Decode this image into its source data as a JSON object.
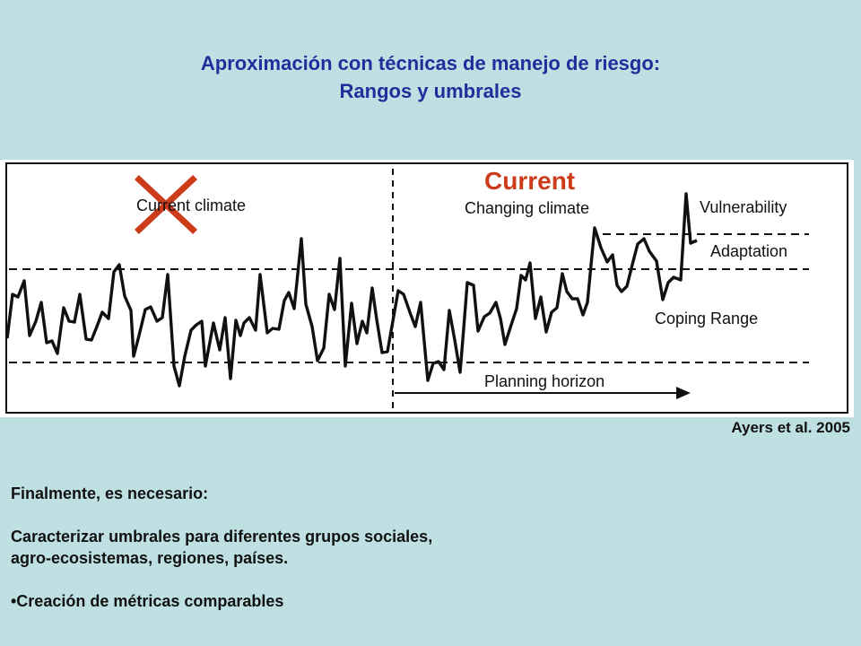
{
  "slide": {
    "title_line1": "Aproximación con técnicas de manejo de riesgo:",
    "title_line2": "Rangos y umbrales",
    "citation": "Ayers et al. 2005",
    "intro": "Finalmente, es necesario:",
    "point1_line1": "Caracterizar umbrales para diferentes grupos sociales,",
    "point1_line2": "agro-ecosistemas, regiones, países.",
    "point2": "•Creación de métricas comparables"
  },
  "figure": {
    "labels": {
      "current_climate": "Current climate",
      "current_overlay": "Current",
      "changing_climate": "Changing climate",
      "vulnerability": "Vulnerability",
      "adaptation": "Adaptation",
      "coping_range": "Coping Range",
      "planning_horizon": "Planning horizon"
    },
    "colors": {
      "series": "#111111",
      "cross_mark": "#cc3b1a",
      "current_overlay": "#cc3b1a"
    },
    "icons": [
      "cross-mark-icon",
      "arrow-right-icon"
    ]
  }
}
